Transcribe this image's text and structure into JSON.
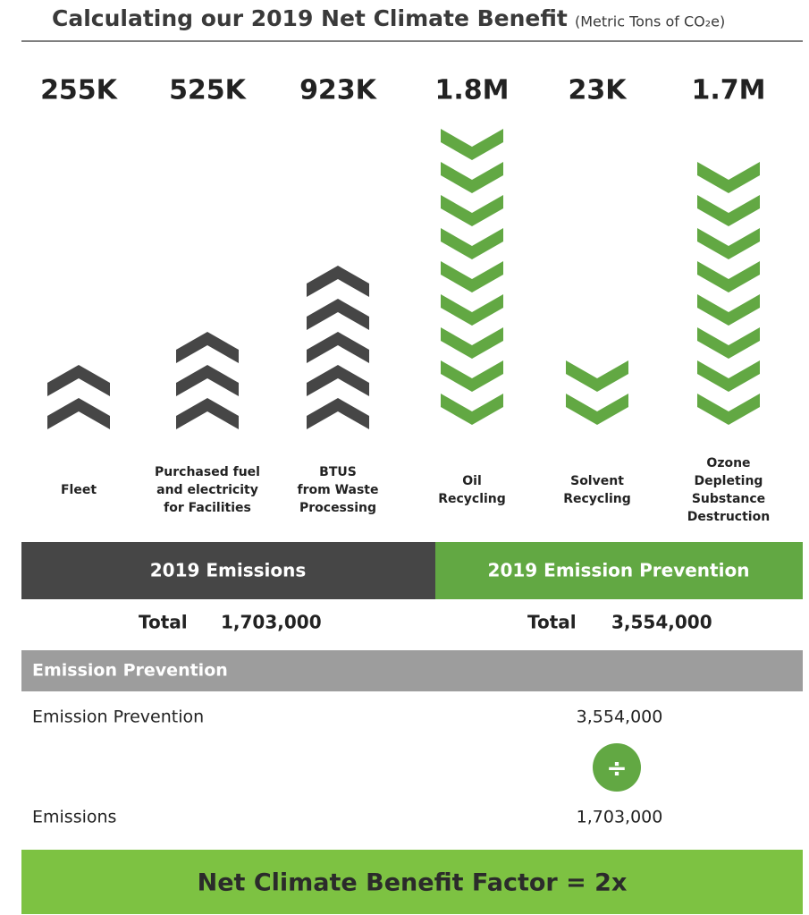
{
  "header": {
    "title": "Calculating our 2019 Net Climate Benefit",
    "subtitle": "(Metric Tons of CO₂e)"
  },
  "columns": [
    {
      "value": "255K",
      "label": [
        "Fleet"
      ]
    },
    {
      "value": "525K",
      "label": [
        "Purchased fuel",
        "and electricity",
        "for Facilities"
      ]
    },
    {
      "value": "923K",
      "label": [
        "BTUS",
        "from Waste",
        "Processing"
      ]
    },
    {
      "value": "1.8M",
      "label": [
        "Oil",
        "Recycling"
      ]
    },
    {
      "value": "23K",
      "label": [
        "Solvent",
        "Recycling"
      ]
    },
    {
      "value": "1.7M",
      "label": [
        "Ozone",
        "Depleting",
        "Substance",
        "Destruction"
      ]
    }
  ],
  "summary": {
    "emissions": {
      "heading": "2019 Emissions",
      "total_label": "Total",
      "total": "1,703,000"
    },
    "prevention": {
      "heading": "2019 Emission Prevention",
      "total_label": "Total",
      "total": "3,554,000"
    }
  },
  "calculation": {
    "heading": "Emission Prevention",
    "rows": [
      {
        "label": "Emission Prevention",
        "value": "3,554,000"
      },
      {
        "label": "Emissions",
        "value": "1,703,000"
      }
    ],
    "operator": "÷",
    "result": "Net Climate Benefit Factor = 2x"
  }
}
